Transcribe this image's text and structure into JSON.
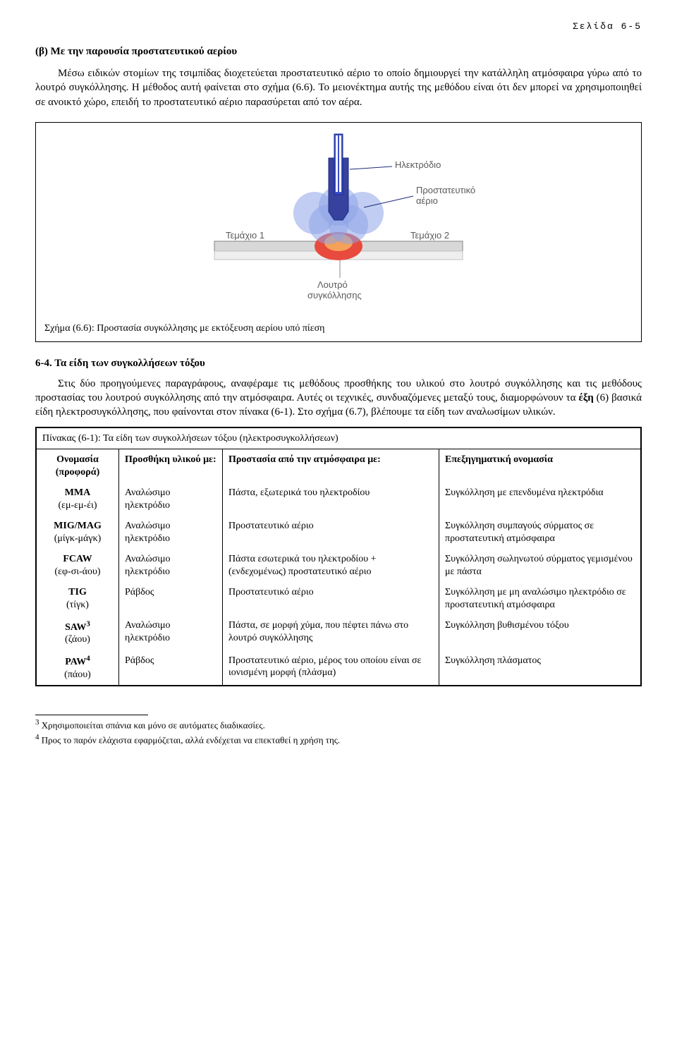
{
  "header": {
    "page_label": "Σελίδα 6-5"
  },
  "section_b": {
    "title": "(β) Με την παρουσία προστατευτικού αερίου",
    "para": "Μέσω ειδικών στομίων της τσιμπίδας διοχετεύεται προστατευτικό αέριο το οποίο δημιουργεί την κατάλληλη ατμόσφαιρα γύρω από το λουτρό συγκόλλησης. Η μέθοδος αυτή φαίνεται στο σχήμα (6.6). Το μειονέκτημα αυτής της μεθόδου είναι ότι δεν μπορεί να χρησιμοποιηθεί σε ανοικτό χώρο, επειδή το προστατευτικό αέριο παρασύρεται από τον αέρα."
  },
  "figure": {
    "caption": "Σχήμα (6.6): Προστασία συγκόλλησης με εκτόξευση αερίου υπό πίεση",
    "labels": {
      "electrode": "Ηλεκτρόδιο",
      "gas": "Προστατευτικό αέριο",
      "piece1": "Τεμάχιο 1",
      "piece2": "Τεμάχιο 2",
      "pool": "Λουτρό συγκόλλησης"
    },
    "colors": {
      "electrode_fill": "#3a4fcf",
      "electrode_stripe": "#ffffff",
      "nozzle": "#36429e",
      "gas_cloud": "#8ea4e8",
      "pool_red": "#e84a3d",
      "pool_orange": "#f5a15a",
      "plate": "#d8d8d8",
      "label_text": "#5a5a5a",
      "plate_line": "#808080"
    }
  },
  "section_6_4": {
    "heading": "6-4. Τα είδη των συγκολλήσεων τόξου",
    "para": "Στις δύο προηγούμενες παραγράφους, αναφέραμε τις μεθόδους προσθήκης του υλικού στο λουτρό συγκόλλησης και τις μεθόδους προστασίας του λουτρού συγκόλλησης από την ατμόσφαιρα. Αυτές οι τεχνικές, συνδυαζόμενες μεταξύ τους, διαμορφώνουν τα έξη (6) βασικά είδη ηλεκτροσυγκόλλησης, που φαίνονται στον πίνακα (6-1). Στο σχήμα (6.7), βλέπουμε τα είδη των αναλωσίμων υλικών.",
    "bold_word": "έξη"
  },
  "table": {
    "caption": "Πίνακας (6-1): Τα είδη των συγκολλήσεων τόξου (ηλεκτροσυγκολλήσεων)",
    "headers": {
      "c1": "Ονομασία (προφορά)",
      "c2": "Προσθήκη υλικού με:",
      "c3": "Προστασία από την ατμόσφαιρα με:",
      "c4": "Επεξηγηματική ονομασία"
    },
    "rows": [
      {
        "name": "MMA",
        "pron": "(εμ-εμ-έι)",
        "add": "Αναλώσιμο ηλεκτρόδιο",
        "prot": "Πάστα, εξωτερικά του ηλεκτροδίου",
        "desc": "Συγκόλληση με επενδυμένα ηλεκτρόδια"
      },
      {
        "name": "MIG/MAG",
        "pron": "(μίγκ-μάγκ)",
        "add": "Αναλώσιμο ηλεκτρόδιο",
        "prot": "Προστατευτικό αέριο",
        "desc": "Συγκόλληση συμπαγούς σύρματος σε προστατευτική ατμόσφαιρα"
      },
      {
        "name": "FCAW",
        "pron": "(εφ-σι-άου)",
        "add": "Αναλώσιμο ηλεκτρόδιο",
        "prot": "Πάστα εσωτερικά του ηλεκτροδίου + (ενδεχομένως) προστατευτικό αέριο",
        "desc": "Συγκόλληση σωληνωτού σύρματος γεμισμένου με πάστα"
      },
      {
        "name": "TIG",
        "pron": "(τίγκ)",
        "add": "Ράβδος",
        "prot": "Προστατευτικό αέριο",
        "desc": "Συγκόλληση με μη αναλώσιμο ηλεκτρόδιο σε προστατευτική ατμόσφαιρα"
      },
      {
        "name": "SAW",
        "sup": "3",
        "pron": "(ζάου)",
        "add": "Αναλώσιμο ηλεκτρόδιο",
        "prot": "Πάστα, σε μορφή χύμα, που πέφτει πάνω στο λουτρό συγκόλλησης",
        "desc": "Συγκόλληση βυθισμένου τόξου"
      },
      {
        "name": "PAW",
        "sup": "4",
        "pron": "(πάου)",
        "add": "Ράβδος",
        "prot": "Προστατευτικό αέριο, μέρος του οποίου είναι σε ιονισμένη μορφή (πλάσμα)",
        "desc": "Συγκόλληση πλάσματος"
      }
    ]
  },
  "footnotes": {
    "f3": "Χρησιμοποιείται σπάνια και μόνο σε αυτόματες διαδικασίες.",
    "f4": "Προς το παρόν ελάχιστα εφαρμόζεται, αλλά ενδέχεται να επεκταθεί η χρήση της."
  }
}
